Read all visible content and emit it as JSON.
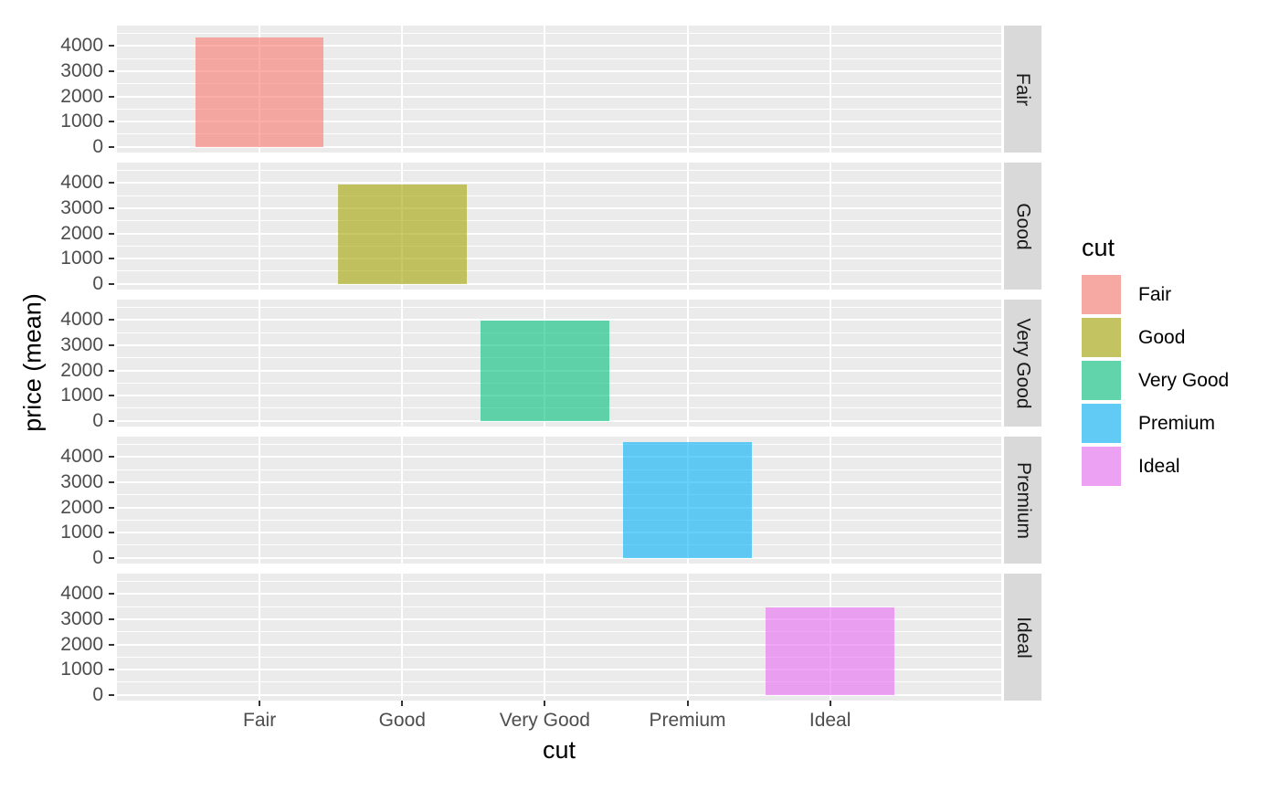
{
  "chart_data": {
    "type": "bar",
    "faceted": true,
    "facet_variable": "cut",
    "facet_strip_side": "right",
    "title": "",
    "xlabel": "cut",
    "ylabel": "price (mean)",
    "legend_title": "cut",
    "legend_position": "right",
    "categories": [
      "Fair",
      "Good",
      "Very Good",
      "Premium",
      "Ideal"
    ],
    "facets": [
      "Fair",
      "Good",
      "Very Good",
      "Premium",
      "Ideal"
    ],
    "series": [
      {
        "facet": "Fair",
        "category": "Fair",
        "value": 4360,
        "color": "#F8766D"
      },
      {
        "facet": "Good",
        "category": "Good",
        "value": 3930,
        "color": "#A3A500"
      },
      {
        "facet": "Very Good",
        "category": "Very Good",
        "value": 3980,
        "color": "#00BF7D"
      },
      {
        "facet": "Premium",
        "category": "Premium",
        "value": 4580,
        "color": "#00B0F6"
      },
      {
        "facet": "Ideal",
        "category": "Ideal",
        "value": 3460,
        "color": "#E76BF3"
      }
    ],
    "bar_alpha": 0.6,
    "bar_width_fraction": 0.9,
    "x_expand_units": 0.6,
    "y_ticks": [
      0,
      1000,
      2000,
      3000,
      4000
    ],
    "y_minor_ticks": [
      500,
      1500,
      2500,
      3500,
      4500
    ],
    "ylim": [
      -230,
      4815
    ],
    "grid": true
  },
  "legend": {
    "title": "cut",
    "entries": [
      {
        "label": "Fair",
        "color": "#F8766D"
      },
      {
        "label": "Good",
        "color": "#A3A500"
      },
      {
        "label": "Very Good",
        "color": "#00BF7D"
      },
      {
        "label": "Premium",
        "color": "#00B0F6"
      },
      {
        "label": "Ideal",
        "color": "#E76BF3"
      }
    ]
  },
  "theme": {
    "background": "#FFFFFF",
    "panel_bg": "#EBEBEB",
    "grid_color": "#FFFFFF",
    "strip_bg": "#D9D9D9",
    "strip_text_color": "#1A1A1A",
    "axis_text_color": "#4D4D4D",
    "axis_title_color": "#000000",
    "tick_mark_color": "#333333",
    "legend_key_bg": "#F2F2F2"
  }
}
